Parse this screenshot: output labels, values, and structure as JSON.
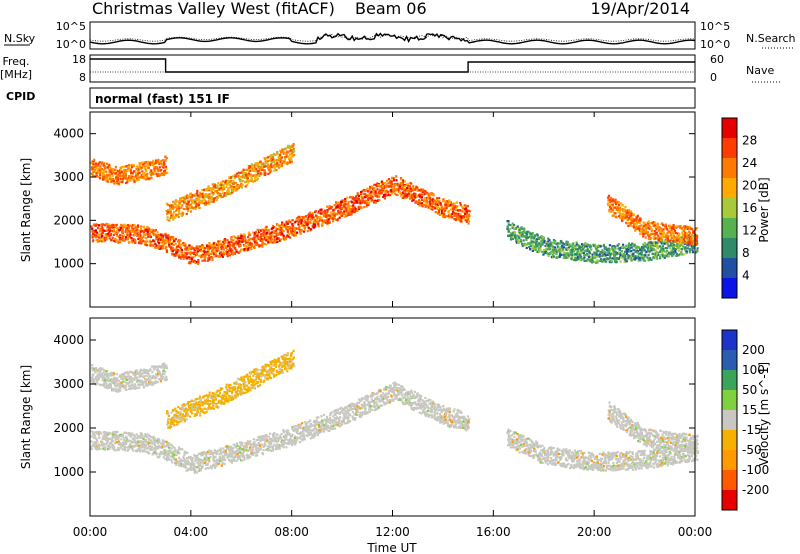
{
  "header": {
    "title": "Christmas Valley West (fitACF)",
    "beam": "Beam 06",
    "date": "19/Apr/2014"
  },
  "noise_panel": {
    "left_label": "N.Sky",
    "left_ticks": [
      "10^5",
      "10^0"
    ],
    "right_label": "N.Search",
    "right_ticks": [
      "10^5",
      "10^0"
    ]
  },
  "freq_panel": {
    "left_label_1": "Freq.",
    "left_label_2": "[MHz]",
    "left_ticks": [
      "18",
      "8"
    ],
    "right_label": "Nave",
    "right_ticks": [
      "60",
      "0"
    ]
  },
  "cpid": {
    "label": "CPID",
    "value": "normal (fast) 151 IF"
  },
  "colors": {
    "power": [
      "#0a14e6",
      "#214fa3",
      "#2f8a6a",
      "#55b24f",
      "#a8c93a",
      "#ffaa00",
      "#ff7a00",
      "#ff3c00",
      "#e60000"
    ],
    "velocity": [
      "#e60000",
      "#ff5a00",
      "#ff9a00",
      "#f5b000",
      "#c8c8c0",
      "#7fd13f",
      "#3aa55a",
      "#2a5db0",
      "#1e33c8"
    ]
  },
  "chart_data": [
    {
      "type": "heatmap",
      "ylabel": "Slant Range [km]",
      "ylim": [
        0,
        4500
      ],
      "yticks": [
        "1000",
        "2000",
        "3000",
        "4000"
      ],
      "xlim": [
        0,
        24
      ],
      "colorbar_label": "Power [dB]",
      "colorbar_ticks": [
        "28",
        "24",
        "20",
        "16",
        "12",
        "8",
        "4"
      ],
      "features": [
        {
          "name": "lower-band",
          "t": [
            0,
            2,
            3,
            4,
            6,
            8,
            10,
            12,
            14,
            15
          ],
          "r": [
            1750,
            1700,
            1500,
            1200,
            1500,
            1850,
            2300,
            2850,
            2300,
            2150
          ],
          "level": 26
        },
        {
          "name": "upper-band",
          "t": [
            0,
            1,
            2,
            3
          ],
          "r": [
            3250,
            3050,
            3150,
            3300
          ],
          "level": 24
        },
        {
          "name": "rising-band",
          "t": [
            3,
            5,
            7,
            8
          ],
          "r": [
            2200,
            2700,
            3300,
            3600
          ],
          "level": 22
        },
        {
          "name": "evening-band",
          "t": [
            16.5,
            18,
            20,
            22,
            24
          ],
          "r": [
            1800,
            1400,
            1250,
            1300,
            1500
          ],
          "level": 10
        },
        {
          "name": "late-band",
          "t": [
            20.5,
            22,
            24
          ],
          "r": [
            2400,
            1800,
            1650
          ],
          "level": 24
        }
      ]
    },
    {
      "type": "heatmap",
      "ylabel": "Slant Range [km]",
      "ylim": [
        0,
        4500
      ],
      "yticks": [
        "1000",
        "2000",
        "3000",
        "4000"
      ],
      "xlim": [
        0,
        24
      ],
      "colorbar_label": "Velocity [m s^-1]",
      "colorbar_ticks": [
        "200",
        "100",
        "50",
        "15",
        "-15",
        "-50",
        "-100",
        "-200"
      ],
      "features": [
        {
          "name": "lower-band",
          "t": [
            0,
            2,
            3,
            4,
            6,
            8,
            10,
            12,
            14,
            15
          ],
          "r": [
            1750,
            1700,
            1500,
            1200,
            1500,
            1850,
            2300,
            2850,
            2300,
            2150
          ],
          "velocity": 0
        },
        {
          "name": "upper-band",
          "t": [
            0,
            1,
            2,
            3
          ],
          "r": [
            3250,
            3050,
            3150,
            3300
          ],
          "velocity": 0
        },
        {
          "name": "rising-band",
          "t": [
            3,
            5,
            7,
            8
          ],
          "r": [
            2200,
            2700,
            3300,
            3600
          ],
          "velocity": -40
        },
        {
          "name": "evening-band",
          "t": [
            16.5,
            18,
            20,
            22,
            24
          ],
          "r": [
            1800,
            1400,
            1250,
            1300,
            1500
          ],
          "velocity": 0
        },
        {
          "name": "late-band",
          "t": [
            20.5,
            22,
            24
          ],
          "r": [
            2400,
            1800,
            1650
          ],
          "velocity": 0
        }
      ]
    }
  ],
  "x_axis": {
    "ticks": [
      "00:00",
      "04:00",
      "08:00",
      "12:00",
      "16:00",
      "20:00",
      "00:00"
    ],
    "label": "Time UT"
  }
}
